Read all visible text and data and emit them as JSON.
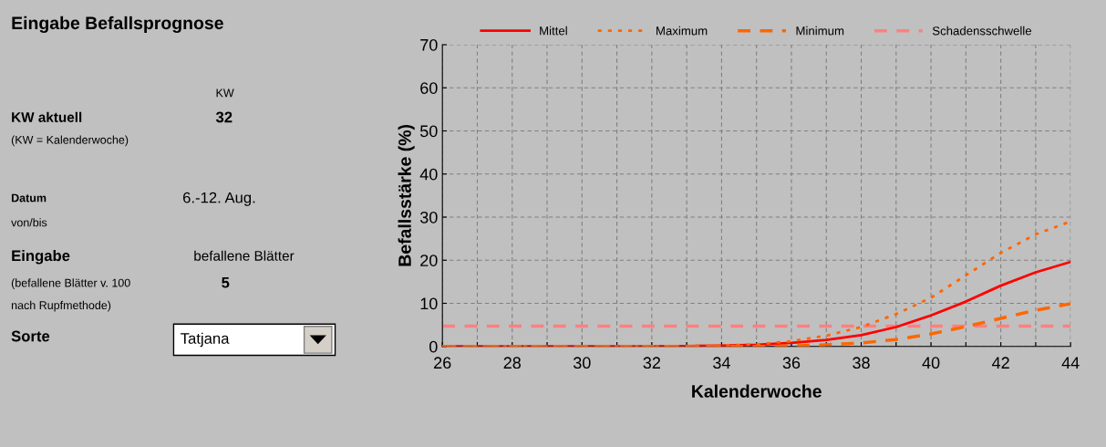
{
  "chart_data": [
    {
      "type": "other",
      "title": "Eingabe Befallsprognose",
      "annotations": [
        "KW",
        "KW aktuell",
        "32",
        "(KW = Kalenderwoche)",
        "Datum",
        "6.-12. Aug.",
        "von/bis",
        "Eingabe",
        "befallene Blätter",
        "(befallene Blätter v. 100",
        "5",
        "nach Rupfmethode)",
        "Sorte",
        "Tatjana"
      ]
    },
    {
      "type": "line",
      "xlabel": "Kalenderwoche",
      "ylabel": "Befallsstärke (%)",
      "x": [
        26,
        27,
        28,
        29,
        30,
        31,
        32,
        33,
        34,
        35,
        36,
        37,
        38,
        39,
        40,
        41,
        42,
        43,
        44
      ],
      "series": [
        {
          "name": "Mittel",
          "color": "#ff0000",
          "line_style": "solid",
          "values": [
            0,
            0,
            0,
            0,
            0,
            0,
            0,
            0.1,
            0.2,
            0.4,
            0.8,
            1.5,
            2.6,
            4.5,
            7.2,
            10.4,
            14.1,
            17.2,
            19.6
          ]
        },
        {
          "name": "Maximum",
          "color": "#ff6600",
          "line_style": "dotted",
          "values": [
            0,
            0,
            0,
            0,
            0,
            0,
            0,
            0.1,
            0.2,
            0.5,
            1.2,
            2.5,
            4.5,
            7.5,
            11.3,
            16.5,
            21.7,
            26,
            29
          ]
        },
        {
          "name": "Minimum",
          "color": "#ff6600",
          "line_style": "dashed",
          "values": [
            0,
            0,
            0,
            0,
            0,
            0,
            0,
            0,
            0,
            0,
            0.1,
            0.4,
            0.8,
            1.6,
            2.9,
            4.6,
            6.5,
            8.4,
            9.9
          ]
        }
      ],
      "ref_lines": [
        {
          "axis": "y",
          "value": 4.7,
          "label": "Schadensschwelle",
          "color": "#ff8080",
          "line_style": "dashed"
        }
      ],
      "xlim": [
        26,
        44
      ],
      "xticks": [
        26,
        {
          "value": 27,
          "label": null
        },
        28,
        {
          "value": 29,
          "label": null
        },
        30,
        {
          "value": 31,
          "label": null
        },
        32,
        {
          "value": 33,
          "label": null
        },
        34,
        {
          "value": 35,
          "label": null
        },
        36,
        {
          "value": 37,
          "label": null
        },
        38,
        {
          "value": 39,
          "label": null
        },
        40,
        {
          "value": 41,
          "label": null
        },
        42,
        {
          "value": 43,
          "label": null
        },
        44
      ],
      "ylim": [
        0,
        70
      ],
      "yticks": [
        0,
        10,
        20,
        30,
        40,
        50,
        60,
        70
      ],
      "grid": true,
      "legend": "top",
      "marker": "none"
    }
  ]
}
